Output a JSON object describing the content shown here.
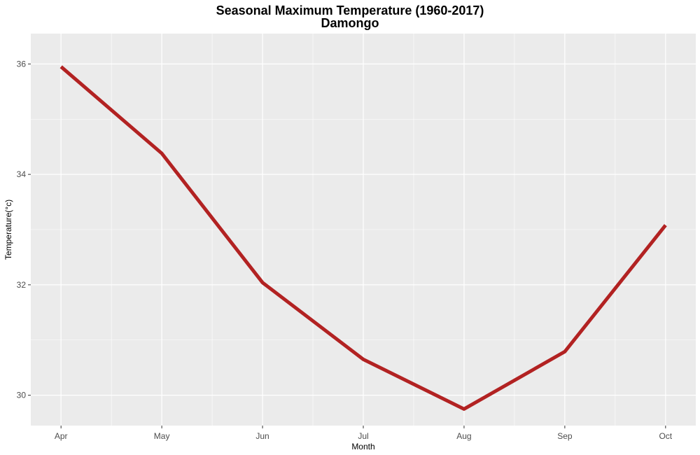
{
  "chart_data": {
    "type": "line",
    "title": "Seasonal Maximum Temperature (1960-2017)",
    "subtitle": "Damongo",
    "xlabel": "Month",
    "ylabel": "Temperature(°c)",
    "categories": [
      "Apr",
      "May",
      "Jun",
      "Jul",
      "Aug",
      "Sep",
      "Oct"
    ],
    "series": [
      {
        "values": [
          35.95,
          34.38,
          32.04,
          30.65,
          29.75,
          30.79,
          33.08
        ]
      }
    ],
    "ylim": [
      29.45,
      36.55
    ],
    "yticks": [
      30,
      32,
      34,
      36
    ],
    "grid": true,
    "line_color": "#B22222",
    "panel_color": "#EBEBEB",
    "grid_color": "#FFFFFF"
  }
}
